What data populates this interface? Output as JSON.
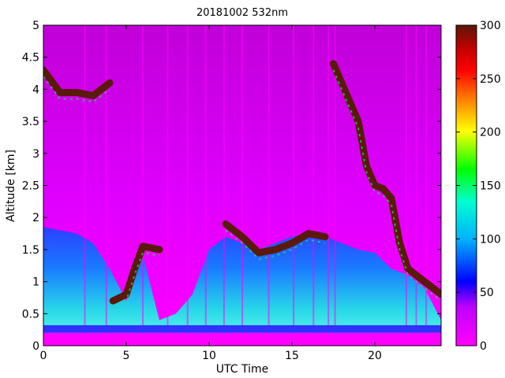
{
  "chart_data": {
    "type": "heatmap",
    "title": "20181002 532nm",
    "xlabel": "UTC Time",
    "ylabel": "Altitude [km]",
    "xlim": [
      0,
      24
    ],
    "ylim": [
      0,
      5
    ],
    "xticks": [
      0,
      5,
      10,
      15,
      20
    ],
    "yticks": [
      0,
      0.5,
      1,
      1.5,
      2,
      2.5,
      3,
      3.5,
      4,
      4.5,
      5
    ],
    "colorbar": {
      "range": [
        0,
        300
      ],
      "ticks": [
        0,
        50,
        100,
        150,
        200,
        250,
        300
      ],
      "colormap": "hsv-like: magenta-blue-cyan-green-yellow-red-brown"
    },
    "grid": false,
    "colors": {
      "background_signal": "#c000d8",
      "low": "#ff00ff",
      "mid": "#1040ff",
      "high_aerosol": "#30e0e0",
      "cloud": "#5a1a0a"
    },
    "features": {
      "boundary_layer_top_km": [
        [
          0,
          1.85
        ],
        [
          1,
          1.8
        ],
        [
          2,
          1.75
        ],
        [
          3,
          1.6
        ],
        [
          4,
          1.2
        ],
        [
          5,
          0.7
        ],
        [
          6,
          1.4
        ],
        [
          7,
          0.4
        ],
        [
          8,
          0.5
        ],
        [
          9,
          0.8
        ],
        [
          10,
          1.5
        ],
        [
          11,
          1.7
        ],
        [
          12,
          1.6
        ],
        [
          13,
          1.5
        ],
        [
          14,
          1.6
        ],
        [
          15,
          1.7
        ],
        [
          16,
          1.75
        ],
        [
          17,
          1.7
        ],
        [
          18,
          1.6
        ],
        [
          19,
          1.5
        ],
        [
          20,
          1.45
        ],
        [
          21,
          1.2
        ],
        [
          22,
          1.1
        ],
        [
          23,
          0.9
        ],
        [
          24,
          0.4
        ]
      ],
      "cloud_segments_km": [
        [
          [
            0,
            4.3
          ],
          [
            1,
            3.95
          ],
          [
            2,
            3.95
          ],
          [
            3,
            3.9
          ],
          [
            3.5,
            4.0
          ],
          [
            4,
            4.1
          ]
        ],
        [
          [
            4.2,
            0.7
          ],
          [
            5,
            0.8
          ],
          [
            5.5,
            1.2
          ],
          [
            6,
            1.55
          ],
          [
            7,
            1.5
          ]
        ],
        [
          [
            11,
            1.9
          ],
          [
            12,
            1.7
          ],
          [
            13,
            1.45
          ],
          [
            14,
            1.5
          ],
          [
            15,
            1.6
          ],
          [
            16,
            1.75
          ],
          [
            17,
            1.7
          ]
        ],
        [
          [
            17.5,
            4.4
          ],
          [
            18,
            4.1
          ],
          [
            18.5,
            3.8
          ],
          [
            19,
            3.5
          ],
          [
            19.5,
            2.8
          ],
          [
            20,
            2.5
          ],
          [
            20.5,
            2.45
          ],
          [
            21,
            2.3
          ],
          [
            21.5,
            1.6
          ],
          [
            22,
            1.2
          ],
          [
            23,
            1.0
          ],
          [
            24,
            0.8
          ]
        ]
      ],
      "surface_band_km": [
        0.2,
        0.32
      ],
      "vertical_streaks_utc": [
        2.5,
        3.8,
        6.0,
        7.5,
        8.7,
        9.8,
        10.9,
        12.0,
        13.6,
        15.1,
        16.3,
        17.2,
        17.6,
        21.9,
        22.5,
        23.1
      ]
    }
  }
}
